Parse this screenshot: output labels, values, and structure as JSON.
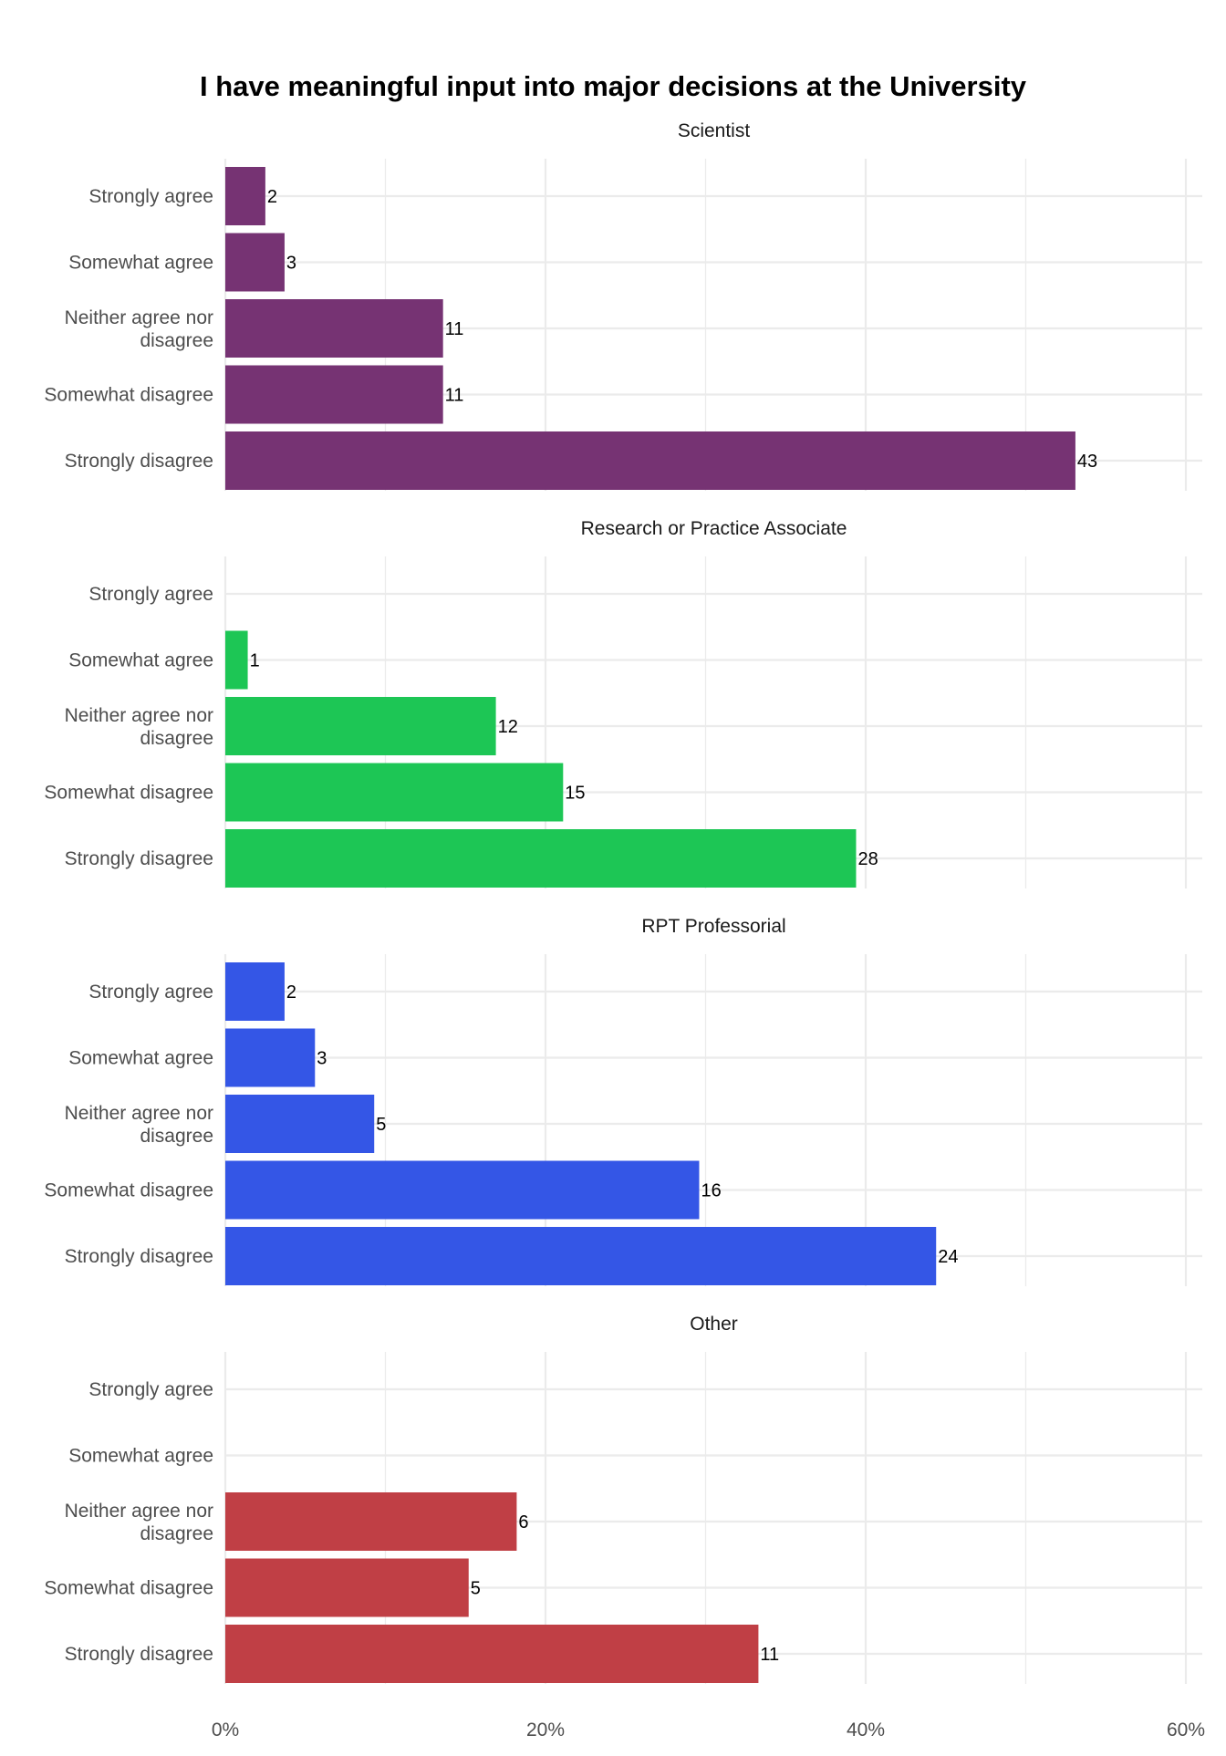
{
  "chart_data": {
    "type": "bar",
    "orientation": "horizontal",
    "title": "I have meaningful input into major decisions at the University",
    "xlabel": "",
    "ylabel": "",
    "xlim": [
      0,
      60
    ],
    "x_ticks": [
      0,
      20,
      40,
      60
    ],
    "x_tick_labels": [
      "0%",
      "20%",
      "40%",
      "60%"
    ],
    "grid": true,
    "legend": "none",
    "categories": [
      "Strongly agree",
      "Somewhat agree",
      "Neither agree nor disagree",
      "Somewhat disagree",
      "Strongly disagree"
    ],
    "category_labels": [
      [
        "Strongly agree"
      ],
      [
        "Somewhat agree"
      ],
      [
        "Neither agree nor",
        "disagree"
      ],
      [
        "Somewhat disagree"
      ],
      [
        "Strongly disagree"
      ]
    ],
    "panels": [
      {
        "name": "Scientist",
        "color": "#763373",
        "counts": [
          2,
          3,
          11,
          11,
          43
        ],
        "percent": [
          2.5,
          3.7,
          13.6,
          13.6,
          53.1
        ]
      },
      {
        "name": "Research or Practice Associate",
        "color": "#1dc655",
        "counts": [
          null,
          1,
          12,
          15,
          28
        ],
        "percent": [
          null,
          1.4,
          16.9,
          21.1,
          39.4
        ]
      },
      {
        "name": "RPT Professorial",
        "color": "#3456e6",
        "counts": [
          2,
          3,
          5,
          16,
          24
        ],
        "percent": [
          3.7,
          5.6,
          9.3,
          29.6,
          44.4
        ]
      },
      {
        "name": "Other",
        "color": "#c03f45",
        "counts": [
          null,
          null,
          6,
          5,
          11
        ],
        "percent": [
          null,
          null,
          18.2,
          15.2,
          33.3
        ]
      }
    ]
  }
}
